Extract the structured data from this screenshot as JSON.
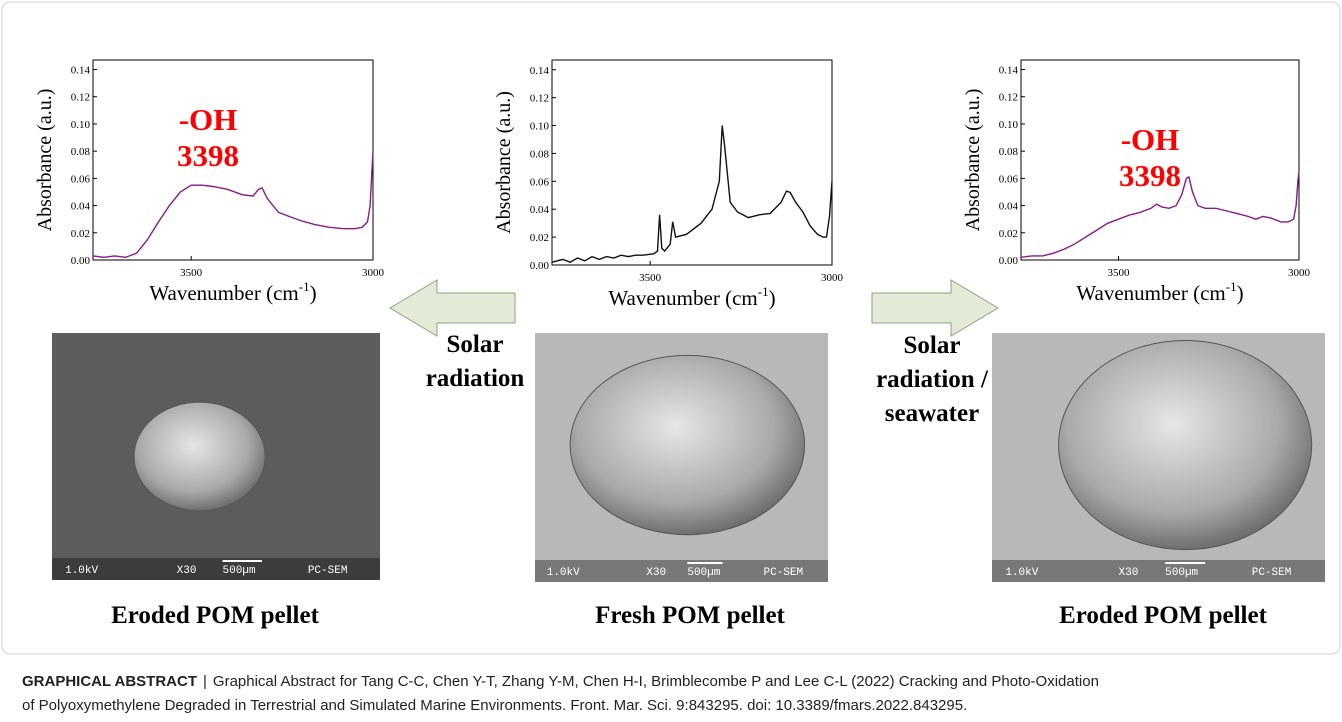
{
  "chart_data": [
    {
      "type": "line",
      "ylabel": "Absorbance (a.u.)",
      "xlabel": "Wavenumber (cm",
      "xlabel_sup": "-1",
      "xlabel_end": ")",
      "xlim": [
        3770,
        3000
      ],
      "ylim": [
        0,
        0.147
      ],
      "xticks": [
        3500,
        3000
      ],
      "yticks": [
        {
          "value": 0,
          "label": "0.00"
        },
        {
          "value": 0.02,
          "label": "0.02"
        },
        {
          "value": 0.04,
          "label": "0.04"
        },
        {
          "value": 0.06,
          "label": "0.06"
        },
        {
          "value": 0.08,
          "label": "0.08"
        },
        {
          "value": 0.1,
          "label": "0.10"
        },
        {
          "value": 0.12,
          "label": "0.12"
        },
        {
          "value": 0.14,
          "label": "0.14"
        }
      ],
      "color": "#8b1a8b",
      "x": [
        3770,
        3740,
        3710,
        3680,
        3650,
        3620,
        3590,
        3560,
        3530,
        3500,
        3470,
        3440,
        3400,
        3360,
        3330,
        3315,
        3305,
        3290,
        3260,
        3230,
        3200,
        3160,
        3120,
        3080,
        3050,
        3030,
        3015,
        3008,
        3003,
        3000
      ],
      "values": [
        0.003,
        0.002,
        0.003,
        0.002,
        0.005,
        0.015,
        0.028,
        0.04,
        0.05,
        0.055,
        0.055,
        0.054,
        0.052,
        0.048,
        0.047,
        0.052,
        0.053,
        0.045,
        0.035,
        0.032,
        0.029,
        0.026,
        0.024,
        0.023,
        0.023,
        0.024,
        0.028,
        0.04,
        0.065,
        0.08
      ],
      "annotations": [
        "-OH",
        "3398"
      ]
    },
    {
      "type": "line",
      "ylabel": "Absorbance (a.u.)",
      "xlabel": "Wavenumber (cm",
      "xlabel_sup": "-1",
      "xlabel_end": ")",
      "xlim": [
        3770,
        3000
      ],
      "ylim": [
        0,
        0.147
      ],
      "xticks": [
        3500,
        3000
      ],
      "yticks": [
        {
          "value": 0,
          "label": "0.00"
        },
        {
          "value": 0.02,
          "label": "0.02"
        },
        {
          "value": 0.04,
          "label": "0.04"
        },
        {
          "value": 0.06,
          "label": "0.06"
        },
        {
          "value": 0.08,
          "label": "0.08"
        },
        {
          "value": 0.1,
          "label": "0.10"
        },
        {
          "value": 0.12,
          "label": "0.12"
        },
        {
          "value": 0.14,
          "label": "0.14"
        }
      ],
      "color": "#111111",
      "x": [
        3770,
        3740,
        3720,
        3700,
        3680,
        3660,
        3640,
        3620,
        3600,
        3580,
        3560,
        3540,
        3520,
        3490,
        3480,
        3474,
        3468,
        3460,
        3445,
        3438,
        3430,
        3400,
        3360,
        3330,
        3310,
        3302,
        3295,
        3280,
        3260,
        3230,
        3200,
        3170,
        3140,
        3125,
        3115,
        3100,
        3080,
        3060,
        3040,
        3025,
        3015,
        3007,
        3000
      ],
      "values": [
        0.002,
        0.004,
        0.002,
        0.005,
        0.003,
        0.006,
        0.004,
        0.006,
        0.005,
        0.007,
        0.006,
        0.007,
        0.007,
        0.008,
        0.01,
        0.036,
        0.012,
        0.01,
        0.015,
        0.031,
        0.02,
        0.022,
        0.03,
        0.04,
        0.06,
        0.1,
        0.085,
        0.045,
        0.038,
        0.034,
        0.036,
        0.037,
        0.045,
        0.053,
        0.052,
        0.045,
        0.038,
        0.028,
        0.022,
        0.02,
        0.02,
        0.035,
        0.06
      ],
      "annotations": []
    },
    {
      "type": "line",
      "ylabel": "Absorbance (a.u.)",
      "xlabel": "Wavenumber (cm",
      "xlabel_sup": "-1",
      "xlabel_end": ")",
      "xlim": [
        3770,
        3000
      ],
      "ylim": [
        0,
        0.147
      ],
      "xticks": [
        3500,
        3000
      ],
      "yticks": [
        {
          "value": 0,
          "label": "0.00"
        },
        {
          "value": 0.02,
          "label": "0.02"
        },
        {
          "value": 0.04,
          "label": "0.04"
        },
        {
          "value": 0.06,
          "label": "0.06"
        },
        {
          "value": 0.08,
          "label": "0.08"
        },
        {
          "value": 0.1,
          "label": "0.10"
        },
        {
          "value": 0.12,
          "label": "0.12"
        },
        {
          "value": 0.14,
          "label": "0.14"
        }
      ],
      "color": "#8b1a8b",
      "x": [
        3770,
        3740,
        3710,
        3680,
        3650,
        3620,
        3590,
        3560,
        3530,
        3500,
        3470,
        3440,
        3410,
        3395,
        3380,
        3360,
        3340,
        3325,
        3312,
        3305,
        3295,
        3280,
        3260,
        3230,
        3200,
        3170,
        3140,
        3120,
        3100,
        3080,
        3050,
        3030,
        3015,
        3008,
        3003,
        3000
      ],
      "values": [
        0.002,
        0.003,
        0.003,
        0.005,
        0.008,
        0.012,
        0.017,
        0.022,
        0.027,
        0.03,
        0.033,
        0.035,
        0.038,
        0.041,
        0.039,
        0.038,
        0.04,
        0.048,
        0.06,
        0.061,
        0.05,
        0.04,
        0.038,
        0.038,
        0.036,
        0.034,
        0.032,
        0.03,
        0.032,
        0.031,
        0.028,
        0.028,
        0.03,
        0.04,
        0.058,
        0.065
      ],
      "annotations": [
        "-OH",
        "3398"
      ]
    }
  ],
  "arrows": [
    {
      "lines": [
        "Solar",
        "radiation"
      ]
    },
    {
      "lines": [
        "Solar",
        "radiation /",
        "seawater"
      ]
    }
  ],
  "images": [
    {
      "labels": [
        "1.0kV",
        "X30",
        "500µm",
        "PC-SEM"
      ],
      "caption": "Eroded POM pellet"
    },
    {
      "labels": [
        "1.0kV",
        "X30",
        "500µm",
        "PC-SEM"
      ],
      "caption": "Fresh POM pellet"
    },
    {
      "labels": [
        "1.0kV",
        "X30",
        "500µm",
        "PC-SEM"
      ],
      "caption": "Eroded POM pellet"
    }
  ],
  "footer": {
    "label": "GRAPHICAL ABSTRACT",
    "separator": "|",
    "lines": [
      "Graphical Abstract for Tang C-C, Chen Y-T, Zhang Y-M, Chen H-I, Brimblecombe P and Lee C-L (2022) Cracking and Photo-Oxidation",
      "of Polyoxymethylene Degraded in Terrestrial and Simulated Marine Environments. Front. Mar. Sci. 9:843295. doi: 10.3389/fmars.2022.843295."
    ]
  }
}
